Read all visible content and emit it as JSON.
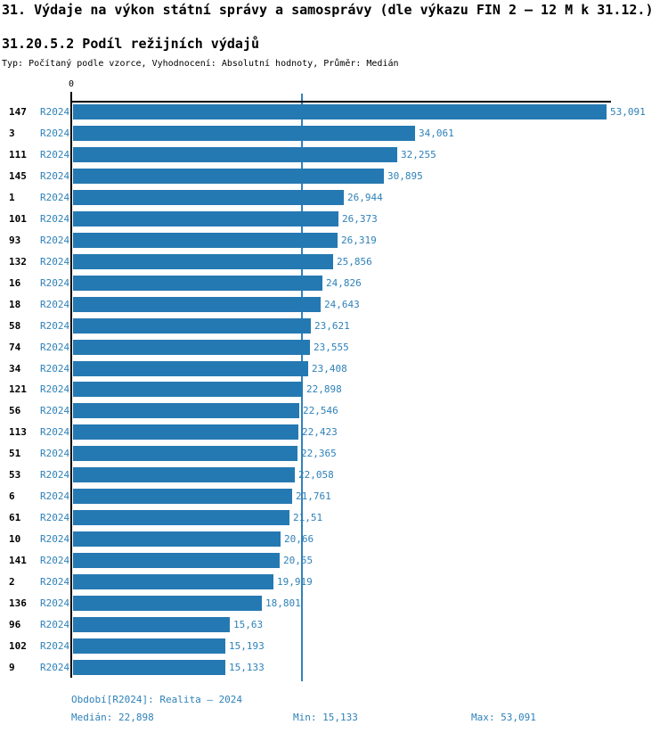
{
  "header": {
    "title": "31. Výdaje na výkon státní správy a samosprávy (dle výkazu FIN 2 – 12 M k 31.12.)",
    "subtitle": "31.20.5.2 Podíl režijních výdajů",
    "meta": "Typ: Počítaný podle vzorce, Vyhodnocení: Absolutní hodnoty, Průměr: Medián"
  },
  "chart_data": {
    "type": "bar",
    "orientation": "horizontal",
    "title": "31.20.5.2 Podíl režijních výdajů",
    "series_name": "R2024",
    "x_axis": {
      "zero_label": "0",
      "xlim": [
        0,
        53.5
      ]
    },
    "median_value": 22.898,
    "min_value": 15.133,
    "max_value": 53.091,
    "rows": [
      {
        "id": "147",
        "period": "R2024",
        "value": 53.091,
        "display": "53,091"
      },
      {
        "id": "3",
        "period": "R2024",
        "value": 34.061,
        "display": "34,061"
      },
      {
        "id": "111",
        "period": "R2024",
        "value": 32.255,
        "display": "32,255"
      },
      {
        "id": "145",
        "period": "R2024",
        "value": 30.895,
        "display": "30,895"
      },
      {
        "id": "1",
        "period": "R2024",
        "value": 26.944,
        "display": "26,944"
      },
      {
        "id": "101",
        "period": "R2024",
        "value": 26.373,
        "display": "26,373"
      },
      {
        "id": "93",
        "period": "R2024",
        "value": 26.319,
        "display": "26,319"
      },
      {
        "id": "132",
        "period": "R2024",
        "value": 25.856,
        "display": "25,856"
      },
      {
        "id": "16",
        "period": "R2024",
        "value": 24.826,
        "display": "24,826"
      },
      {
        "id": "18",
        "period": "R2024",
        "value": 24.643,
        "display": "24,643"
      },
      {
        "id": "58",
        "period": "R2024",
        "value": 23.621,
        "display": "23,621"
      },
      {
        "id": "74",
        "period": "R2024",
        "value": 23.555,
        "display": "23,555"
      },
      {
        "id": "34",
        "period": "R2024",
        "value": 23.408,
        "display": "23,408"
      },
      {
        "id": "121",
        "period": "R2024",
        "value": 22.898,
        "display": "22,898"
      },
      {
        "id": "56",
        "period": "R2024",
        "value": 22.546,
        "display": "22,546"
      },
      {
        "id": "113",
        "period": "R2024",
        "value": 22.423,
        "display": "22,423"
      },
      {
        "id": "51",
        "period": "R2024",
        "value": 22.365,
        "display": "22,365"
      },
      {
        "id": "53",
        "period": "R2024",
        "value": 22.058,
        "display": "22,058"
      },
      {
        "id": "6",
        "period": "R2024",
        "value": 21.761,
        "display": "21,761"
      },
      {
        "id": "61",
        "period": "R2024",
        "value": 21.51,
        "display": "21,51"
      },
      {
        "id": "10",
        "period": "R2024",
        "value": 20.66,
        "display": "20,66"
      },
      {
        "id": "141",
        "period": "R2024",
        "value": 20.55,
        "display": "20,55"
      },
      {
        "id": "2",
        "period": "R2024",
        "value": 19.919,
        "display": "19,919"
      },
      {
        "id": "136",
        "period": "R2024",
        "value": 18.801,
        "display": "18,801"
      },
      {
        "id": "96",
        "period": "R2024",
        "value": 15.63,
        "display": "15,63"
      },
      {
        "id": "102",
        "period": "R2024",
        "value": 15.193,
        "display": "15,193"
      },
      {
        "id": "9",
        "period": "R2024",
        "value": 15.133,
        "display": "15,133"
      }
    ],
    "legend": null,
    "grid": "median-line-only"
  },
  "footer": {
    "period_info": "Období[R2024]: Realita – 2024",
    "median_label": "Medián: 22,898",
    "min_label": "Min: 15,133",
    "max_label": "Max: 53,091"
  },
  "colors": {
    "bar": "#2579B2",
    "blue_text": "#2E81B8",
    "median_line": "#3182BD",
    "axis": "#000000",
    "title_text": "#000000"
  }
}
